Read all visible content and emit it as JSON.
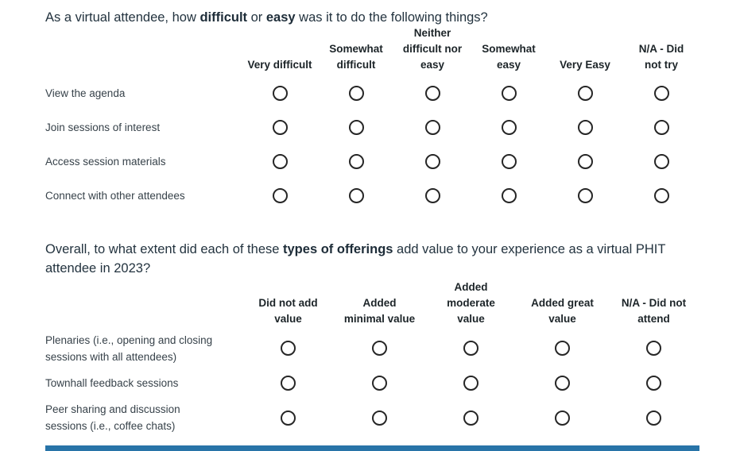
{
  "accent_color": "#2874a8",
  "question1": {
    "text_pre": "As a virtual attendee, how ",
    "text_bold1": "difficult",
    "text_mid": " or ",
    "text_bold2": "easy",
    "text_post": " was it to do the following things?",
    "columns": [
      "Very difficult",
      "Somewhat\ndifficult",
      "Neither\ndifficult nor\neasy",
      "Somewhat\neasy",
      "Very Easy",
      "N/A - Did\nnot try"
    ],
    "rows": [
      "View the agenda",
      "Join sessions of interest",
      "Access session materials",
      "Connect with other attendees"
    ]
  },
  "question2": {
    "text_pre": "Overall, to what extent did each of these ",
    "text_bold": "types of offerings",
    "text_post": " add value to your experience as a virtual PHIT\nattendee in 2023?",
    "columns": [
      "Did not add\nvalue",
      "Added\nminimal value",
      "Added\nmoderate\nvalue",
      "Added great\nvalue",
      "N/A - Did not\nattend"
    ],
    "rows": [
      "Plenaries (i.e., opening and closing\nsessions with all attendees)",
      "Townhall feedback sessions",
      "Peer sharing and discussion\nsessions (i.e., coffee chats)"
    ]
  }
}
